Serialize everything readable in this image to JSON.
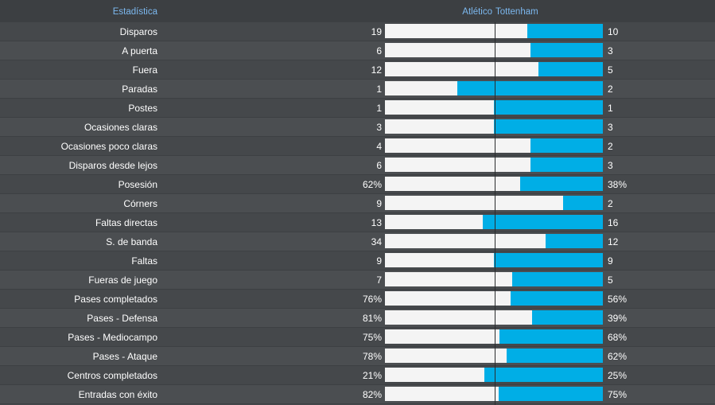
{
  "header": {
    "stat_label": "Estadística",
    "home_team": "Atlético",
    "away_team": "Tottenham"
  },
  "colors": {
    "home_bar": "#f4f4f4",
    "away_bar": "#00aee6",
    "header_text": "#7cb8ef"
  },
  "stats": [
    {
      "label": "Disparos",
      "home": "19",
      "away": "10",
      "home_share": 0.655
    },
    {
      "label": "A puerta",
      "home": "6",
      "away": "3",
      "home_share": 0.667
    },
    {
      "label": "Fuera",
      "home": "12",
      "away": "5",
      "home_share": 0.706
    },
    {
      "label": "Paradas",
      "home": "1",
      "away": "2",
      "home_share": 0.333
    },
    {
      "label": "Postes",
      "home": "1",
      "away": "1",
      "home_share": 0.5
    },
    {
      "label": "Ocasiones claras",
      "home": "3",
      "away": "3",
      "home_share": 0.5
    },
    {
      "label": "Ocasiones poco claras",
      "home": "4",
      "away": "2",
      "home_share": 0.667
    },
    {
      "label": "Disparos desde lejos",
      "home": "6",
      "away": "3",
      "home_share": 0.667
    },
    {
      "label": "Posesión",
      "home": "62%",
      "away": "38%",
      "home_share": 0.62
    },
    {
      "label": "Córners",
      "home": "9",
      "away": "2",
      "home_share": 0.818
    },
    {
      "label": "Faltas directas",
      "home": "13",
      "away": "16",
      "home_share": 0.448
    },
    {
      "label": "S. de banda",
      "home": "34",
      "away": "12",
      "home_share": 0.739
    },
    {
      "label": "Faltas",
      "home": "9",
      "away": "9",
      "home_share": 0.5
    },
    {
      "label": "Fueras de juego",
      "home": "7",
      "away": "5",
      "home_share": 0.583
    },
    {
      "label": "Pases completados",
      "home": "76%",
      "away": "56%",
      "home_share": 0.576
    },
    {
      "label": "Pases - Defensa",
      "home": "81%",
      "away": "39%",
      "home_share": 0.675
    },
    {
      "label": "Pases - Mediocampo",
      "home": "75%",
      "away": "68%",
      "home_share": 0.524
    },
    {
      "label": "Pases - Ataque",
      "home": "78%",
      "away": "62%",
      "home_share": 0.557
    },
    {
      "label": "Centros completados",
      "home": "21%",
      "away": "25%",
      "home_share": 0.457
    },
    {
      "label": "Entradas con éxito",
      "home": "82%",
      "away": "75%",
      "home_share": 0.522
    }
  ]
}
